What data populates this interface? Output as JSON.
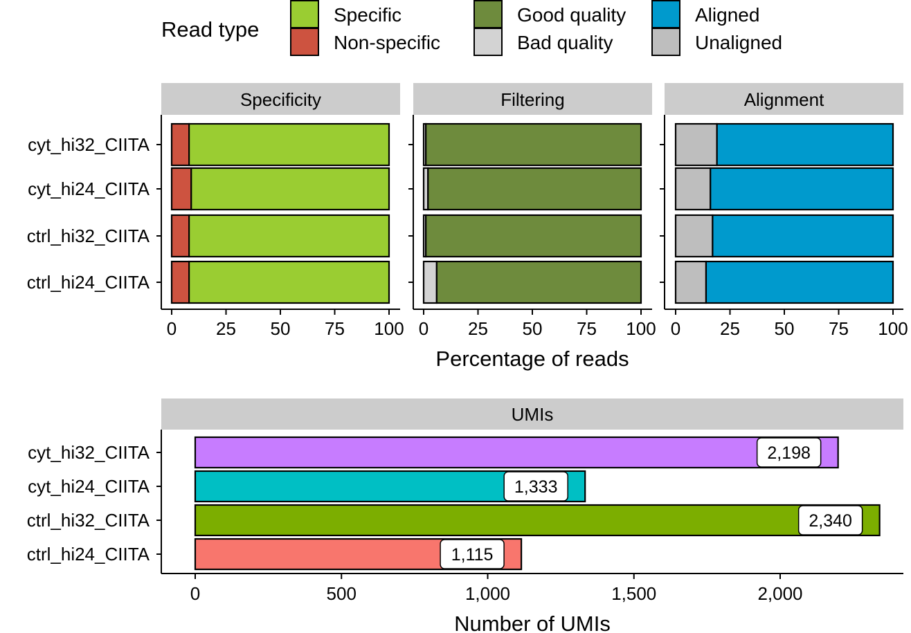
{
  "legend": {
    "title": "Read type",
    "items": [
      {
        "label": "Specific",
        "color": "#9ACD32"
      },
      {
        "label": "Non-specific",
        "color": "#CD5340"
      },
      {
        "label": "Good quality",
        "color": "#6E8B3D"
      },
      {
        "label": "Bad quality",
        "color": "#D3D3D3"
      },
      {
        "label": "Aligned",
        "color": "#009ACD"
      },
      {
        "label": "Unaligned",
        "color": "#BEBEBE"
      }
    ]
  },
  "chart_data": [
    {
      "type": "bar",
      "orientation": "horizontal",
      "stacked": true,
      "categories": [
        "cyt_hi32_CIITA",
        "cyt_hi24_CIITA",
        "ctrl_hi32_CIITA",
        "ctrl_hi24_CIITA"
      ],
      "xlabel": "Percentage of reads",
      "xlim": [
        0,
        100
      ],
      "xticks": [
        "0",
        "25",
        "50",
        "75",
        "100"
      ],
      "facets": [
        {
          "title": "Specificity",
          "series": [
            {
              "name": "Non-specific",
              "color": "#CD5340",
              "values": [
                8,
                9,
                8,
                8
              ]
            },
            {
              "name": "Specific",
              "color": "#9ACD32",
              "values": [
                92,
                91,
                92,
                92
              ]
            }
          ]
        },
        {
          "title": "Filtering",
          "series": [
            {
              "name": "Bad quality",
              "color": "#D3D3D3",
              "values": [
                1,
                2,
                1,
                6
              ]
            },
            {
              "name": "Good quality",
              "color": "#6E8B3D",
              "values": [
                99,
                98,
                99,
                94
              ]
            }
          ]
        },
        {
          "title": "Alignment",
          "series": [
            {
              "name": "Unaligned",
              "color": "#BEBEBE",
              "values": [
                19,
                16,
                17,
                14
              ]
            },
            {
              "name": "Aligned",
              "color": "#009ACD",
              "values": [
                81,
                84,
                83,
                86
              ]
            }
          ]
        }
      ]
    },
    {
      "type": "bar",
      "orientation": "horizontal",
      "facet_title": "UMIs",
      "categories": [
        "cyt_hi32_CIITA",
        "cyt_hi24_CIITA",
        "ctrl_hi32_CIITA",
        "ctrl_hi24_CIITA"
      ],
      "values": [
        2198,
        1333,
        2340,
        1115
      ],
      "value_labels": [
        "2,198",
        "1,333",
        "2,340",
        "1,115"
      ],
      "colors": [
        "#C77CFF",
        "#00BFC4",
        "#7CAE00",
        "#F8766D"
      ],
      "xlabel": "Number of UMIs",
      "xlim": [
        -80,
        2430
      ],
      "xtick_values": [
        0,
        500,
        1000,
        1500,
        2000
      ],
      "xticks": [
        "0",
        "500",
        "1,000",
        "1,500",
        "2,000"
      ]
    }
  ]
}
